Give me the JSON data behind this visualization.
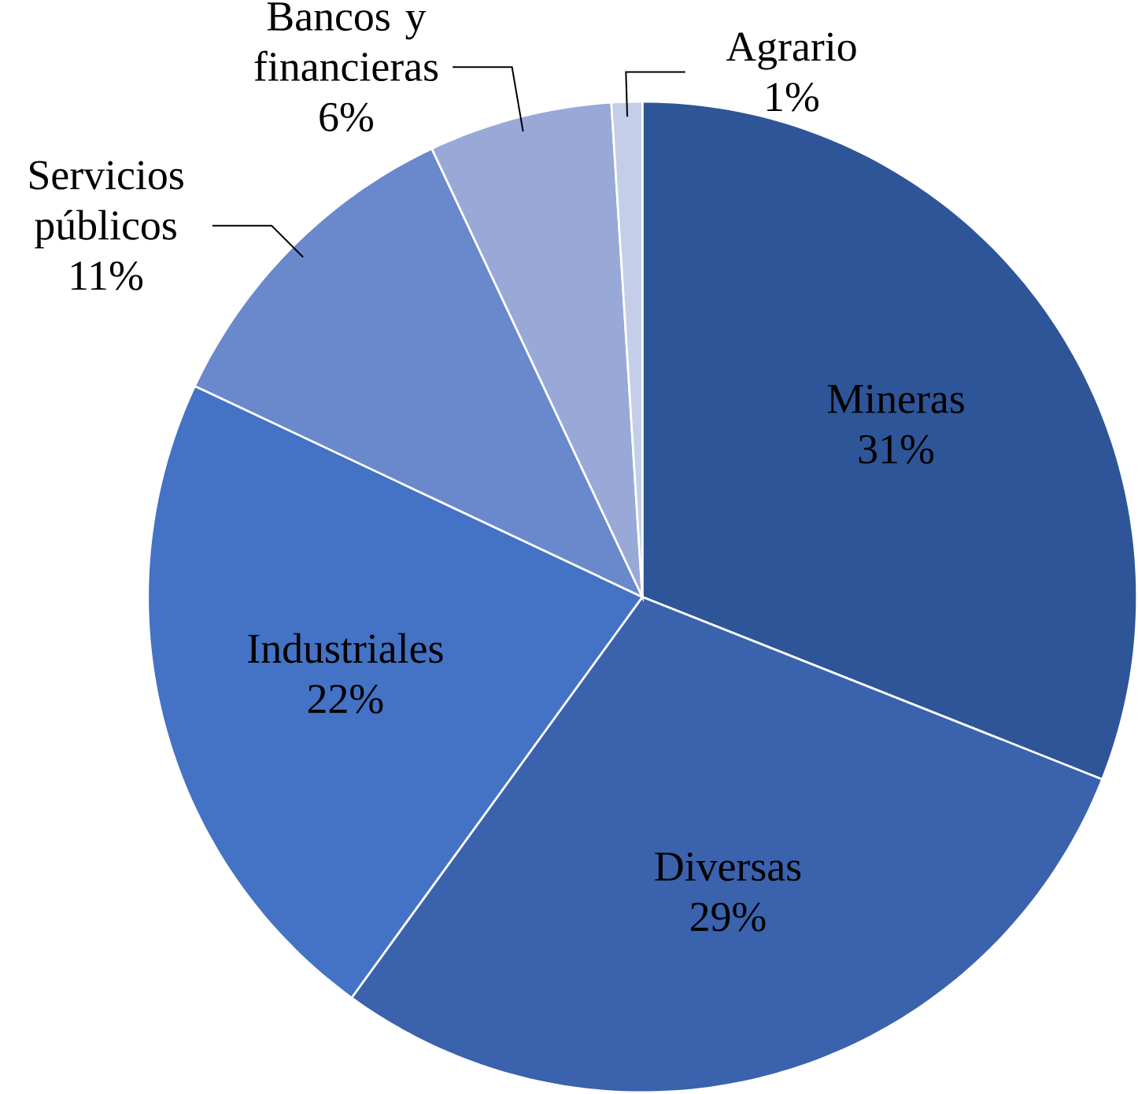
{
  "chart_data": {
    "type": "pie",
    "categories": [
      "Mineras",
      "Diversas",
      "Industriales",
      "Servicios públicos",
      "Bancos y financieras",
      "Agrario"
    ],
    "values": [
      31,
      29,
      22,
      11,
      6,
      1
    ],
    "value_labels": [
      "31%",
      "29%",
      "22%",
      "11%",
      "6%",
      "1%"
    ],
    "colors": [
      "#2e5597",
      "#3a62ad",
      "#4472c4",
      "#6a88cc",
      "#98a9d8",
      "#c5cee8"
    ]
  }
}
